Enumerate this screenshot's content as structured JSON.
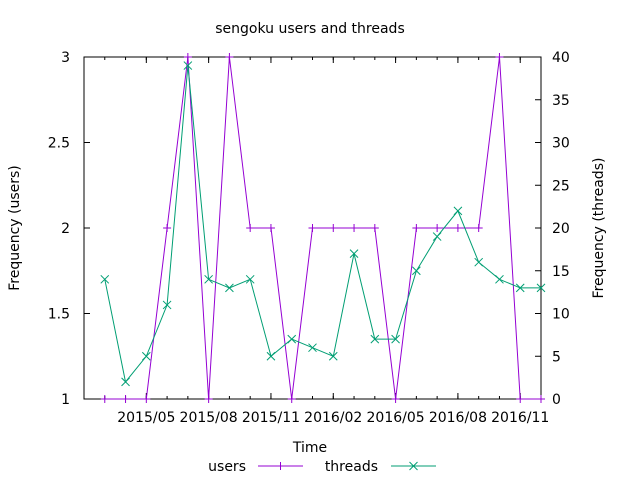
{
  "chart_data": {
    "type": "line",
    "title": "sengoku users and threads",
    "xlabel": "Time",
    "ylabel": "Frequency (users)",
    "y2label": "Frequency (threads)",
    "x_ticks": [
      "2015/05",
      "2015/08",
      "2015/11",
      "2016/02",
      "2016/05",
      "2016/08",
      "2016/11"
    ],
    "ylim": [
      1,
      3
    ],
    "y_ticks": [
      1,
      1.5,
      2,
      2.5,
      3
    ],
    "y2lim": [
      0,
      40
    ],
    "y2_ticks": [
      0,
      5,
      10,
      15,
      20,
      25,
      30,
      35,
      40
    ],
    "series": [
      {
        "name": "users",
        "color": "#9400d3",
        "marker": "plus",
        "axis": "y",
        "x": [
          "2015-03",
          "2015-04",
          "2015-05",
          "2015-06",
          "2015-07",
          "2015-08",
          "2015-09",
          "2015-10",
          "2015-11",
          "2015-12",
          "2016-01",
          "2016-02",
          "2016-03",
          "2016-04",
          "2016-05",
          "2016-06",
          "2016-07",
          "2016-08",
          "2016-09",
          "2016-10",
          "2016-11",
          "2016-12"
        ],
        "values": [
          1,
          1,
          1,
          2,
          3,
          1,
          3,
          2,
          2,
          1,
          2,
          2,
          2,
          2,
          1,
          2,
          2,
          2,
          2,
          3,
          1,
          1
        ]
      },
      {
        "name": "threads",
        "color": "#009e73",
        "marker": "x",
        "axis": "y2",
        "x": [
          "2015-03",
          "2015-04",
          "2015-05",
          "2015-06",
          "2015-07",
          "2015-08",
          "2015-09",
          "2015-10",
          "2015-11",
          "2015-12",
          "2016-01",
          "2016-02",
          "2016-03",
          "2016-04",
          "2016-05",
          "2016-06",
          "2016-07",
          "2016-08",
          "2016-09",
          "2016-10",
          "2016-11",
          "2016-12"
        ],
        "values": [
          14,
          2,
          5,
          11,
          39,
          14,
          13,
          14,
          5,
          7,
          6,
          5,
          17,
          7,
          7,
          15,
          19,
          22,
          16,
          14,
          13,
          13
        ]
      }
    ]
  }
}
